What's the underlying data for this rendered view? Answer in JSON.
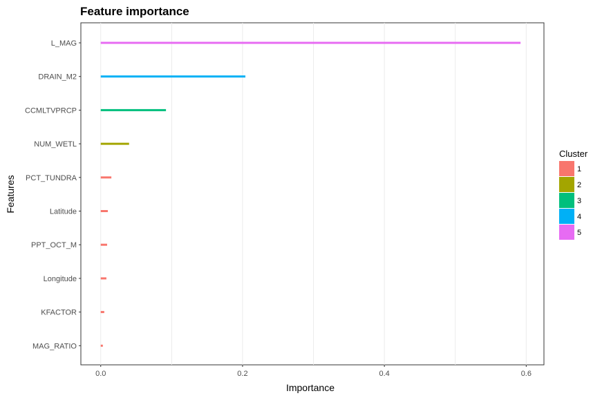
{
  "chart_data": {
    "type": "bar",
    "orientation": "horizontal",
    "title": "Feature importance",
    "xlabel": "Importance",
    "ylabel": "Features",
    "xlim": [
      -0.028,
      0.625
    ],
    "xticks": [
      0.0,
      0.2,
      0.4,
      0.6
    ],
    "xtick_labels": [
      "0.0",
      "0.2",
      "0.4",
      "0.6"
    ],
    "grid": true,
    "legend": {
      "title": "Cluster",
      "position": "right",
      "entries": [
        "1",
        "2",
        "3",
        "4",
        "5"
      ]
    },
    "cluster_colors": {
      "1": "#F8766D",
      "2": "#A3A500",
      "3": "#00BF7D",
      "4": "#00B0F6",
      "5": "#E76BF3"
    },
    "categories": [
      "L_MAG",
      "DRAIN_M2",
      "CCMLTVPRCP",
      "NUM_WETL",
      "PCT_TUNDRA",
      "Latitude",
      "PPT_OCT_M",
      "Longitude",
      "KFACTOR",
      "MAG_RATIO"
    ],
    "values": [
      0.592,
      0.204,
      0.092,
      0.04,
      0.015,
      0.01,
      0.009,
      0.008,
      0.005,
      0.003
    ],
    "clusters": [
      "5",
      "4",
      "3",
      "2",
      "1",
      "1",
      "1",
      "1",
      "1",
      "1"
    ]
  }
}
